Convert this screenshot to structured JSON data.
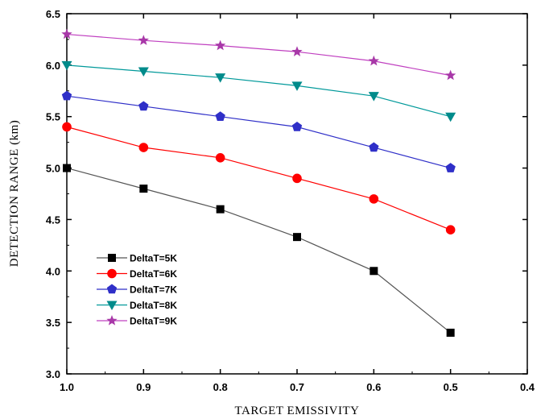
{
  "chart_data": {
    "type": "line",
    "xlabel": "TARGET EMISSIVITY",
    "ylabel": "DETECTION RANGE (km)",
    "xlim": [
      1.0,
      0.4
    ],
    "ylim": [
      3.0,
      6.5
    ],
    "x_reversed": true,
    "xticks": [
      "1.0",
      "0.9",
      "0.8",
      "0.7",
      "0.6",
      "0.5",
      "0.4"
    ],
    "yticks": [
      "3.0",
      "3.5",
      "4.0",
      "4.5",
      "5.0",
      "5.5",
      "6.0",
      "6.5"
    ],
    "x": [
      1.0,
      0.9,
      0.8,
      0.7,
      0.6,
      0.5
    ],
    "legend_position": "left, lower-middle",
    "grid": false,
    "series": [
      {
        "name": "DeltaT=5K",
        "values": [
          5.0,
          4.8,
          4.6,
          4.33,
          4.0,
          3.4
        ],
        "line_color": "#555555",
        "marker": "square",
        "marker_color": "#000000"
      },
      {
        "name": "DeltaT=6K",
        "values": [
          5.4,
          5.2,
          5.1,
          4.9,
          4.7,
          4.4
        ],
        "line_color": "#ff0000",
        "marker": "circle",
        "marker_color": "#ff0000"
      },
      {
        "name": "DeltaT=7K",
        "values": [
          5.7,
          5.6,
          5.5,
          5.4,
          5.2,
          5.0
        ],
        "line_color": "#2f2fc8",
        "marker": "pentagon",
        "marker_color": "#2f2fc8"
      },
      {
        "name": "DeltaT=8K",
        "values": [
          6.0,
          5.94,
          5.88,
          5.8,
          5.7,
          5.5
        ],
        "line_color": "#00999a",
        "marker": "triangle-down",
        "marker_color": "#008b8b"
      },
      {
        "name": "DeltaT=9K",
        "values": [
          6.3,
          6.24,
          6.19,
          6.13,
          6.04,
          5.9
        ],
        "line_color": "#c040c0",
        "marker": "star",
        "marker_color": "#a838a8"
      }
    ]
  }
}
